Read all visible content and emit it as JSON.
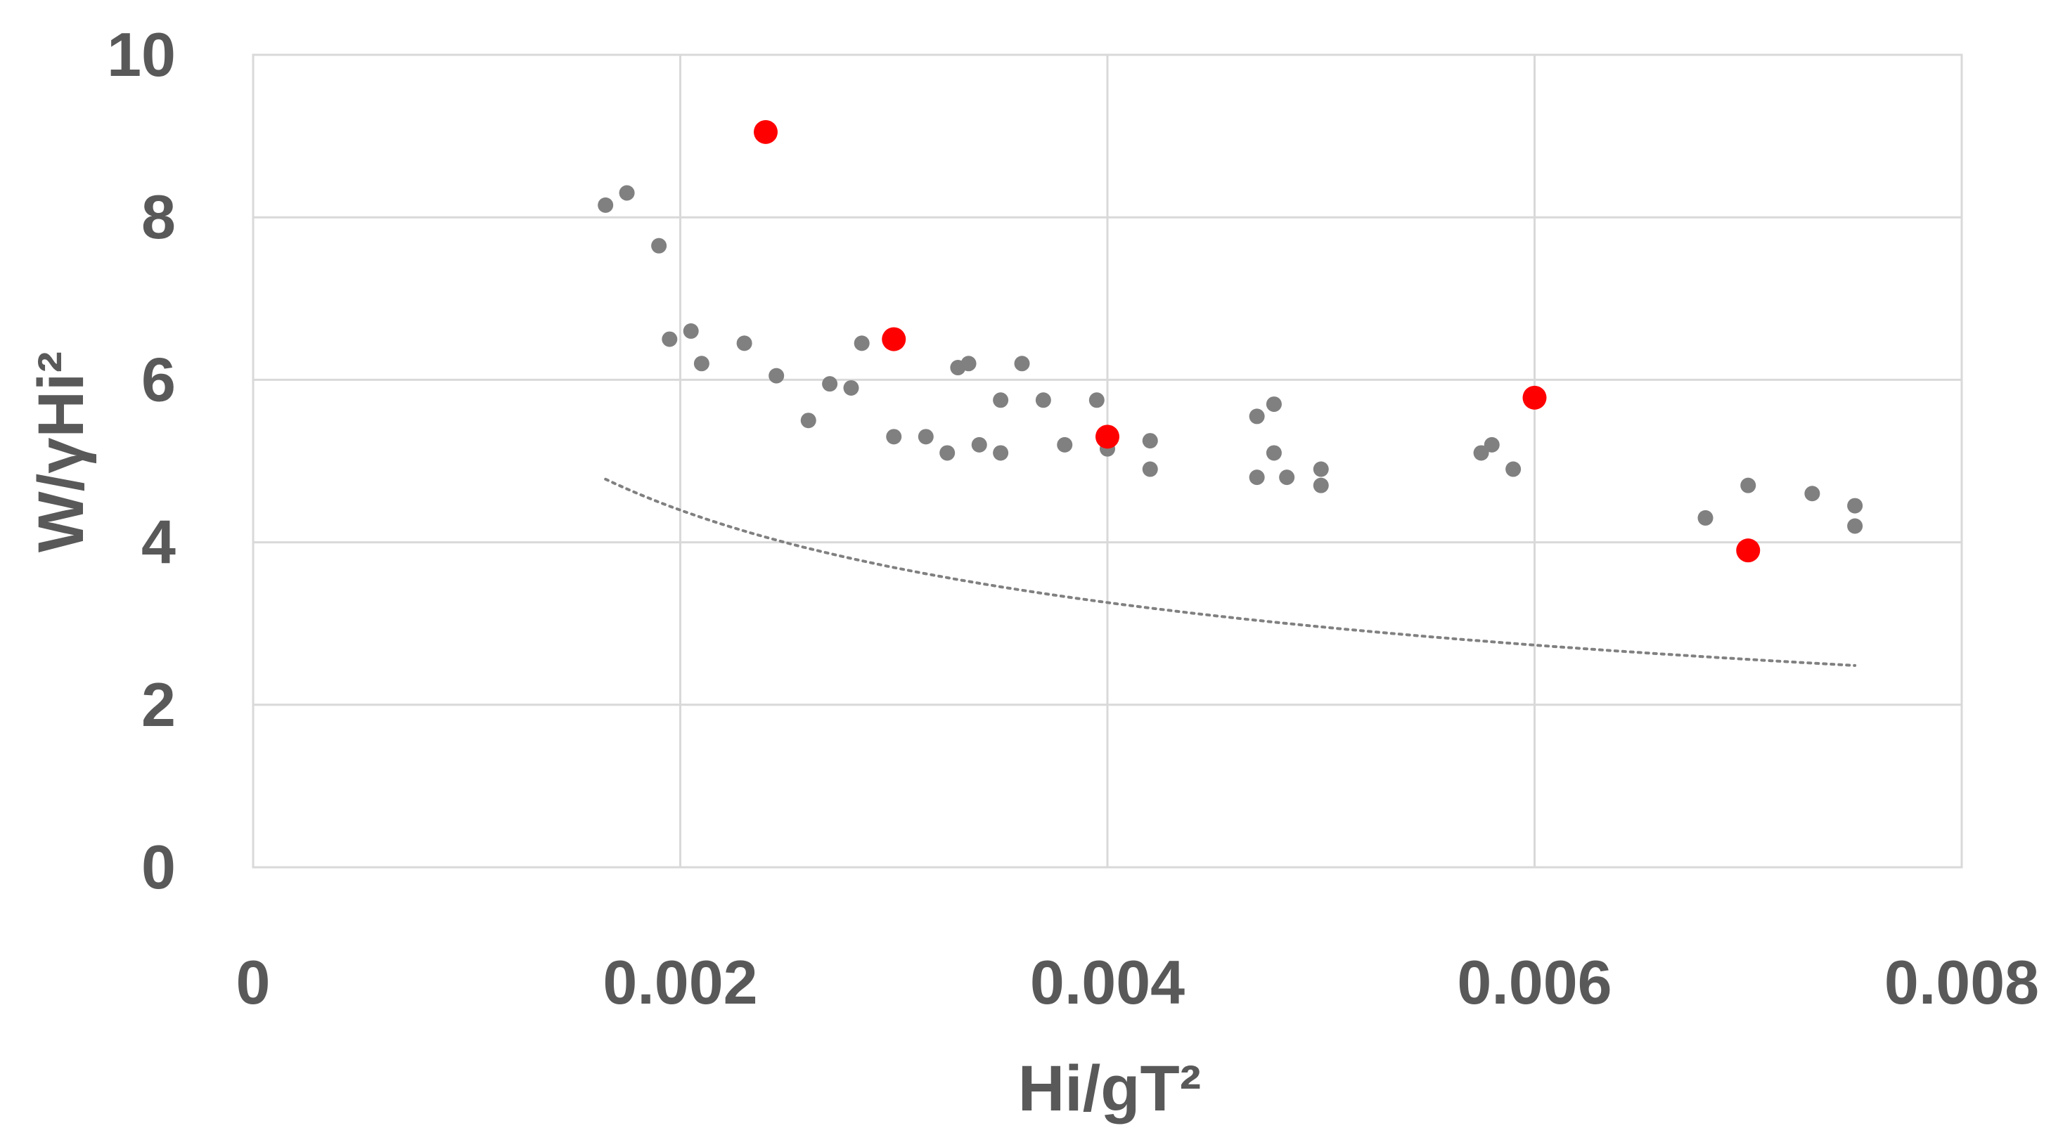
{
  "chart_data": {
    "type": "scatter",
    "title": "",
    "xlabel": "Hi/gT²",
    "ylabel": "W/γHi²",
    "xlim": [
      0,
      0.008
    ],
    "ylim": [
      0,
      10
    ],
    "x_ticks": [
      "0",
      "0.002",
      "0.004",
      "0.006",
      "0.008"
    ],
    "y_ticks": [
      "0",
      "2",
      "4",
      "6",
      "8",
      "10"
    ],
    "grid": true,
    "legend": "none",
    "colors": {
      "grey": "#808080",
      "red": "#ff0000",
      "grid": "#d9d9d9",
      "text": "#595959"
    },
    "series": [
      {
        "name": "grey points",
        "color": "#808080",
        "points": [
          [
            0.00165,
            8.15
          ],
          [
            0.00175,
            8.3
          ],
          [
            0.0019,
            7.65
          ],
          [
            0.00195,
            6.5
          ],
          [
            0.00205,
            6.6
          ],
          [
            0.0021,
            6.2
          ],
          [
            0.0023,
            6.45
          ],
          [
            0.00245,
            6.05
          ],
          [
            0.0026,
            5.5
          ],
          [
            0.0027,
            5.95
          ],
          [
            0.0028,
            5.9
          ],
          [
            0.00285,
            6.45
          ],
          [
            0.003,
            5.3
          ],
          [
            0.00315,
            5.3
          ],
          [
            0.00325,
            5.1
          ],
          [
            0.0033,
            6.15
          ],
          [
            0.00335,
            6.2
          ],
          [
            0.0034,
            5.2
          ],
          [
            0.0035,
            5.1
          ],
          [
            0.0035,
            5.75
          ],
          [
            0.0036,
            6.2
          ],
          [
            0.0037,
            5.75
          ],
          [
            0.0038,
            5.2
          ],
          [
            0.00395,
            5.75
          ],
          [
            0.004,
            5.15
          ],
          [
            0.0042,
            5.25
          ],
          [
            0.0042,
            4.9
          ],
          [
            0.0047,
            5.55
          ],
          [
            0.0047,
            4.8
          ],
          [
            0.00478,
            5.7
          ],
          [
            0.00478,
            5.1
          ],
          [
            0.00484,
            4.8
          ],
          [
            0.005,
            4.9
          ],
          [
            0.005,
            4.7
          ],
          [
            0.00575,
            5.1
          ],
          [
            0.0058,
            5.2
          ],
          [
            0.0059,
            4.9
          ],
          [
            0.0068,
            4.3
          ],
          [
            0.007,
            4.7
          ],
          [
            0.0073,
            4.6
          ],
          [
            0.0075,
            4.45
          ],
          [
            0.0075,
            4.2
          ]
        ]
      },
      {
        "name": "red points",
        "color": "#ff0000",
        "points": [
          [
            0.0024,
            9.05
          ],
          [
            0.003,
            6.5
          ],
          [
            0.004,
            5.3
          ],
          [
            0.006,
            5.78
          ],
          [
            0.007,
            3.9
          ]
        ]
      }
    ],
    "trendline": {
      "type": "power",
      "style": "dotted",
      "color": "#808080",
      "a": 0.3,
      "b": -0.432,
      "x_range": [
        0.00165,
        0.0075
      ]
    }
  }
}
